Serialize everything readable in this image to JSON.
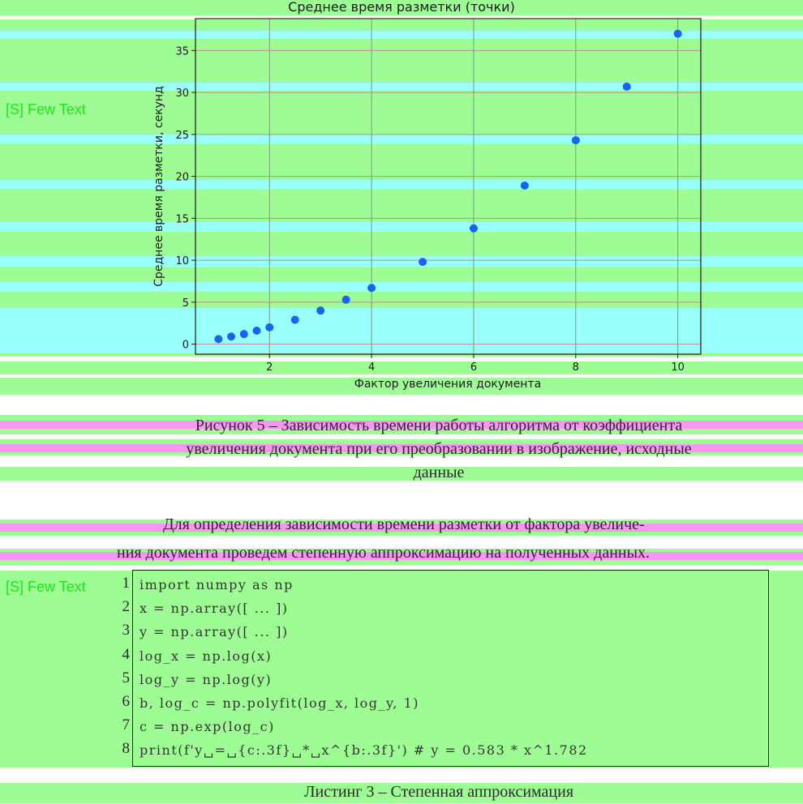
{
  "tags": {
    "label_top": "[S] Few Text",
    "label_bottom": "[S] Few Text"
  },
  "chart_data": {
    "type": "scatter",
    "title": "Среднее время разметки (точки)",
    "xlabel": "Фактор увеличения документа",
    "ylabel": "Среднее время разметки, секунд",
    "xlim": [
      0.55,
      10.45
    ],
    "ylim": [
      -1.2,
      38.8
    ],
    "grid": true,
    "x_ticks": [
      2,
      4,
      6,
      8,
      10
    ],
    "y_ticks": [
      0,
      5,
      10,
      15,
      20,
      25,
      30,
      35
    ],
    "x": [
      1.0,
      1.25,
      1.5,
      1.75,
      2.0,
      2.5,
      3.0,
      3.5,
      4.0,
      5.0,
      6.0,
      7.0,
      8.0,
      9.0,
      10.0
    ],
    "y": [
      0.6,
      0.9,
      1.2,
      1.6,
      2.0,
      2.9,
      4.0,
      5.3,
      6.7,
      9.8,
      13.8,
      18.9,
      24.3,
      30.7,
      37.0
    ],
    "point_color": "#1763f2"
  },
  "figure_caption": [
    "Рисунок 5 – Зависимость времени работы алгоритма от коэффициента",
    "увеличения документа при его преобразовании в изображение, исходные",
    "данные"
  ],
  "paragraph": [
    "Для определения зависимости времени разметки от фактора увеличе-",
    "ния документа проведем степенную аппроксимацию на полученных данных."
  ],
  "listing": {
    "lines": [
      {
        "num": "1",
        "code": "import numpy as np"
      },
      {
        "num": "2",
        "code": "x = np.array([ ... ])"
      },
      {
        "num": "3",
        "code": "y = np.array([ ... ])"
      },
      {
        "num": "4",
        "code": "log_x = np.log(x)"
      },
      {
        "num": "5",
        "code": "log_y = np.log(y)"
      },
      {
        "num": "6",
        "code": "b, log_c = np.polyfit(log_x, log_y, 1)"
      },
      {
        "num": "7",
        "code": "c = np.exp(log_c)"
      },
      {
        "num": "8",
        "code": "print(f'y␣=␣{c:.3f}␣*␣x^{b:.3f}') # y = 0.583 * x^1.782"
      }
    ],
    "caption": "Листинг 3 – Степенная аппроксимация"
  }
}
